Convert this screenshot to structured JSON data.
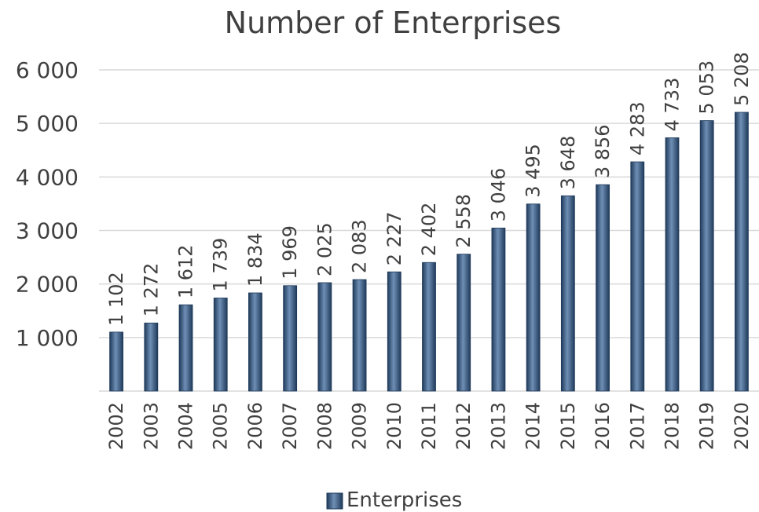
{
  "chart_data": {
    "type": "bar",
    "title": "Number of Enterprises",
    "categories": [
      "2002",
      "2003",
      "2004",
      "2005",
      "2006",
      "2007",
      "2008",
      "2009",
      "2010",
      "2011",
      "2012",
      "2013",
      "2014",
      "2015",
      "2016",
      "2017",
      "2018",
      "2019",
      "2020"
    ],
    "series": [
      {
        "name": "Enterprises",
        "values": [
          1102,
          1272,
          1612,
          1739,
          1834,
          1969,
          2025,
          2083,
          2227,
          2402,
          2558,
          3046,
          3495,
          3648,
          3856,
          4283,
          4733,
          5053,
          5208
        ],
        "data_labels": [
          "1 102",
          "1 272",
          "1 612",
          "1 739",
          "1 834",
          "1 969",
          "2 025",
          "2 083",
          "2 227",
          "2 402",
          "2 558",
          "3 046",
          "3 495",
          "3 648",
          "3 856",
          "4 283",
          "4 733",
          "5 053",
          "5 208"
        ],
        "color": "#2f4f73"
      }
    ],
    "ylim": [
      0,
      6000
    ],
    "yticks": [
      1000,
      2000,
      3000,
      4000,
      5000,
      6000
    ],
    "ytick_labels": [
      "1 000",
      "2 000",
      "3 000",
      "4 000",
      "5 000",
      "6 000"
    ],
    "xlabel": "",
    "ylabel": "",
    "grid": true,
    "legend_position": "bottom",
    "colors": {
      "bar_dark": "#1f3a5a",
      "bar_light": "#6f8fb5",
      "text": "#404040",
      "grid": "#d9d9d9"
    }
  }
}
